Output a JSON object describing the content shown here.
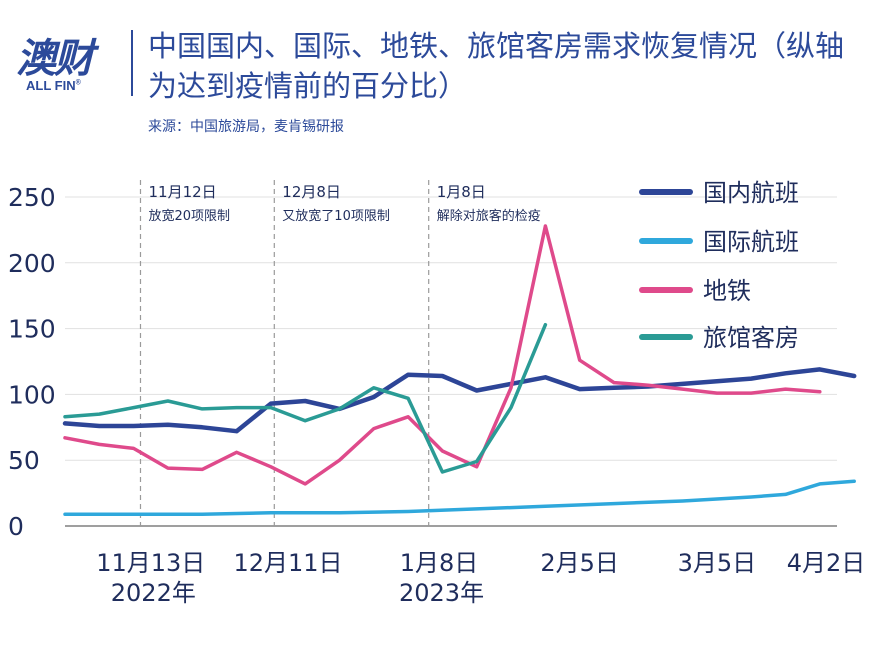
{
  "header": {
    "logo_cn": "澳财",
    "logo_en": "ALL FIN",
    "logo_reg": "®",
    "title": "中国国内、国际、地铁、旅馆客房需求恢复情况（纵轴为达到疫情前的百分比）",
    "source": "来源：中国旅游局，麦肯锡研报"
  },
  "colors": {
    "domestic": "#2d4597",
    "international": "#2fa8dc",
    "subway": "#df4a8b",
    "hotel": "#2a9b95",
    "text": "#1f2d5c",
    "grid": "#e1e1e1"
  },
  "chart_data": {
    "type": "line",
    "ylim": [
      0,
      250
    ],
    "yticks": [
      0,
      50,
      100,
      150,
      200,
      250
    ],
    "x_range": [
      0,
      22.5
    ],
    "x_ticks": [
      {
        "x": 2.5,
        "label": "11月13日",
        "sub": "2022年"
      },
      {
        "x": 6.5,
        "label": "12月11日",
        "sub": ""
      },
      {
        "x": 10.9,
        "label": "1月8日",
        "sub": "2023年"
      },
      {
        "x": 15,
        "label": "2月5日",
        "sub": ""
      },
      {
        "x": 19,
        "label": "3月5日",
        "sub": ""
      },
      {
        "x": 23,
        "label": "4月2日",
        "sub": ""
      }
    ],
    "annotations": [
      {
        "x": 2.2,
        "date": "11月12日",
        "text": "放宽20项限制"
      },
      {
        "x": 6.1,
        "date": "12月8日",
        "text": "又放宽了10项限制"
      },
      {
        "x": 10.6,
        "date": "1月8日",
        "text": "解除对旅客的检疫"
      }
    ],
    "series": [
      {
        "name": "国内航班",
        "color_key": "domestic",
        "points": [
          [
            0,
            78
          ],
          [
            1,
            76
          ],
          [
            2,
            76
          ],
          [
            3,
            77
          ],
          [
            4,
            75
          ],
          [
            5,
            72
          ],
          [
            6,
            93
          ],
          [
            7,
            95
          ],
          [
            8,
            89
          ],
          [
            9,
            98
          ],
          [
            10,
            115
          ],
          [
            11,
            114
          ],
          [
            12,
            103
          ],
          [
            13,
            108
          ],
          [
            14,
            113
          ],
          [
            15,
            104
          ],
          [
            16,
            105
          ],
          [
            17,
            106
          ],
          [
            18,
            108
          ],
          [
            19,
            110
          ],
          [
            20,
            112
          ],
          [
            21,
            116
          ],
          [
            22,
            119
          ],
          [
            23,
            114
          ]
        ]
      },
      {
        "name": "国际航班",
        "color_key": "international",
        "points": [
          [
            0,
            9
          ],
          [
            2,
            9
          ],
          [
            4,
            9
          ],
          [
            6,
            10
          ],
          [
            8,
            10
          ],
          [
            10,
            11
          ],
          [
            12,
            13
          ],
          [
            14,
            15
          ],
          [
            16,
            17
          ],
          [
            18,
            19
          ],
          [
            20,
            22
          ],
          [
            21,
            24
          ],
          [
            22,
            32
          ],
          [
            23,
            34
          ]
        ]
      },
      {
        "name": "地铁",
        "color_key": "subway",
        "points": [
          [
            0,
            67
          ],
          [
            1,
            62
          ],
          [
            2,
            59
          ],
          [
            3,
            44
          ],
          [
            4,
            43
          ],
          [
            5,
            56
          ],
          [
            6,
            45
          ],
          [
            7,
            32
          ],
          [
            8,
            50
          ],
          [
            9,
            74
          ],
          [
            10,
            83
          ],
          [
            11,
            57
          ],
          [
            12,
            45
          ],
          [
            13,
            105
          ],
          [
            14,
            228
          ],
          [
            15,
            126
          ],
          [
            16,
            109
          ],
          [
            17,
            107
          ],
          [
            18,
            104
          ],
          [
            19,
            101
          ],
          [
            20,
            101
          ],
          [
            21,
            104
          ],
          [
            22,
            102
          ]
        ]
      },
      {
        "name": "旅馆客房",
        "color_key": "hotel",
        "points": [
          [
            0,
            83
          ],
          [
            1,
            85
          ],
          [
            2,
            90
          ],
          [
            3,
            95
          ],
          [
            4,
            89
          ],
          [
            5,
            90
          ],
          [
            6,
            90
          ],
          [
            7,
            80
          ],
          [
            8,
            89
          ],
          [
            9,
            105
          ],
          [
            10,
            97
          ],
          [
            11,
            41
          ],
          [
            12,
            49
          ],
          [
            13,
            90
          ],
          [
            14,
            153
          ]
        ]
      }
    ],
    "legend": [
      "国内航班",
      "国际航班",
      "地铁",
      "旅馆客房"
    ],
    "legend_position": "top-right"
  }
}
